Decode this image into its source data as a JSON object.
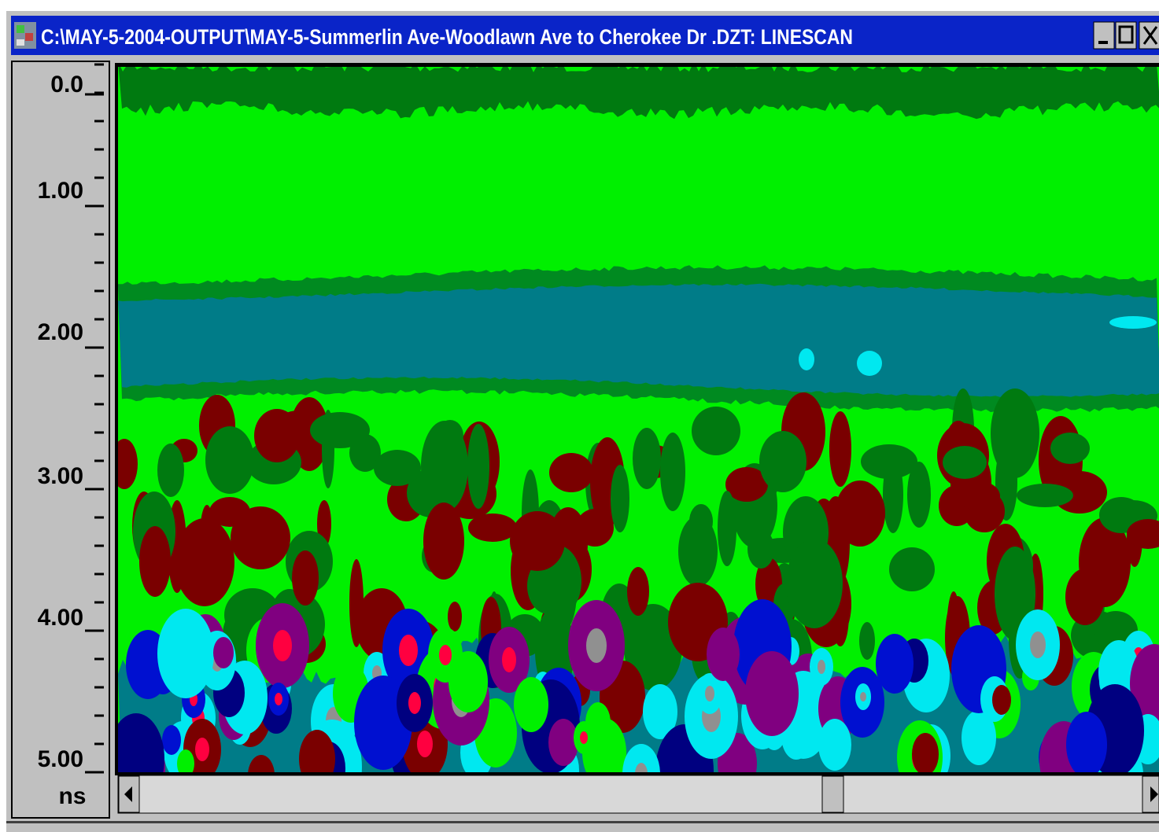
{
  "window": {
    "title": "C:\\MAY-5-2004-OUTPUT\\MAY-5-Summerlin Ave-Woodlawn Ave to Cherokee Dr .DZT:  LINESCAN"
  },
  "depth_axis": {
    "labels": [
      "0.0",
      "1.00",
      "2.00",
      "3.00",
      "4.00",
      "5.00"
    ],
    "unit": "ns"
  }
}
